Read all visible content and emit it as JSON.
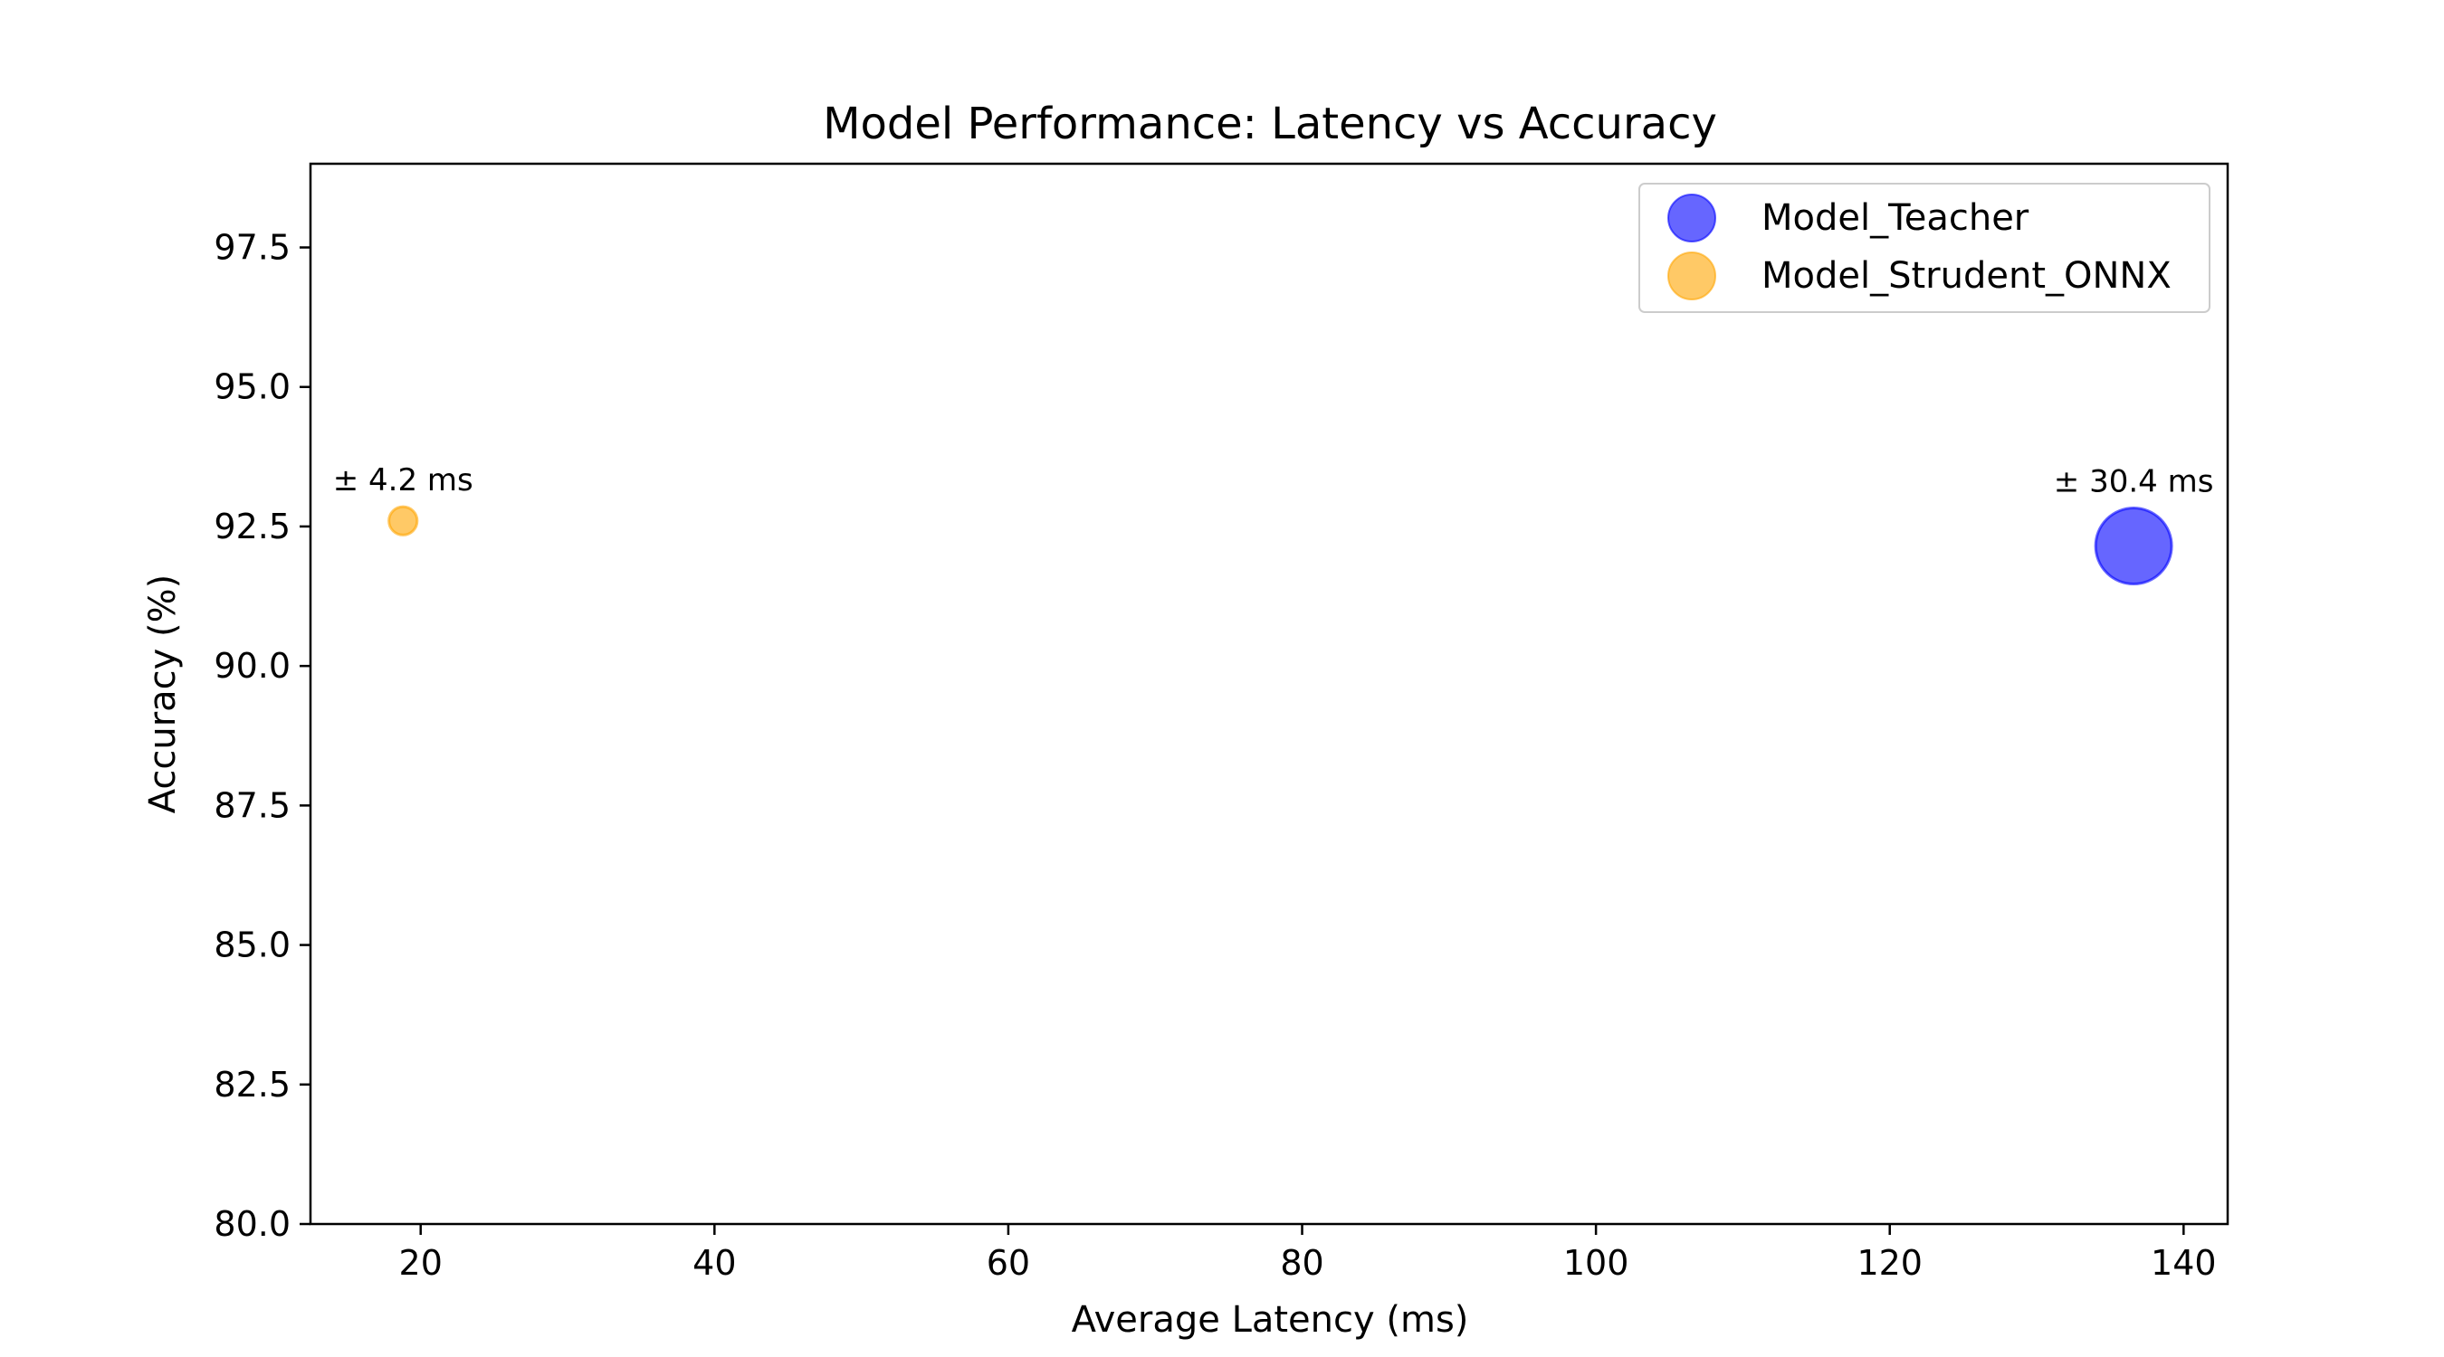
{
  "chart_data": {
    "type": "scatter",
    "title": "Model Performance: Latency vs Accuracy",
    "xlabel": "Average Latency (ms)",
    "ylabel": "Accuracy (%)",
    "xlim": [
      12.5,
      143.0
    ],
    "ylim": [
      80.0,
      99.0
    ],
    "x_ticks": [
      20,
      40,
      60,
      80,
      100,
      120,
      140
    ],
    "x_tick_labels": [
      "20",
      "40",
      "60",
      "80",
      "100",
      "120",
      "140"
    ],
    "y_ticks": [
      80.0,
      82.5,
      85.0,
      87.5,
      90.0,
      92.5,
      95.0,
      97.5
    ],
    "y_tick_labels": [
      "80.0",
      "82.5",
      "85.0",
      "87.5",
      "90.0",
      "92.5",
      "95.0",
      "97.5"
    ],
    "grid": false,
    "legend_position": "top-right",
    "series": [
      {
        "name": "Model_Teacher",
        "color": "#0000ff",
        "x": 136.6,
        "y": 92.15,
        "latency_std_ms": 30.4,
        "annotation": "± 30.4 ms"
      },
      {
        "name": "Model_Strudent_ONNX",
        "color": "#ffa500",
        "x": 18.8,
        "y": 92.6,
        "latency_std_ms": 4.2,
        "annotation": "± 4.2 ms"
      }
    ]
  }
}
